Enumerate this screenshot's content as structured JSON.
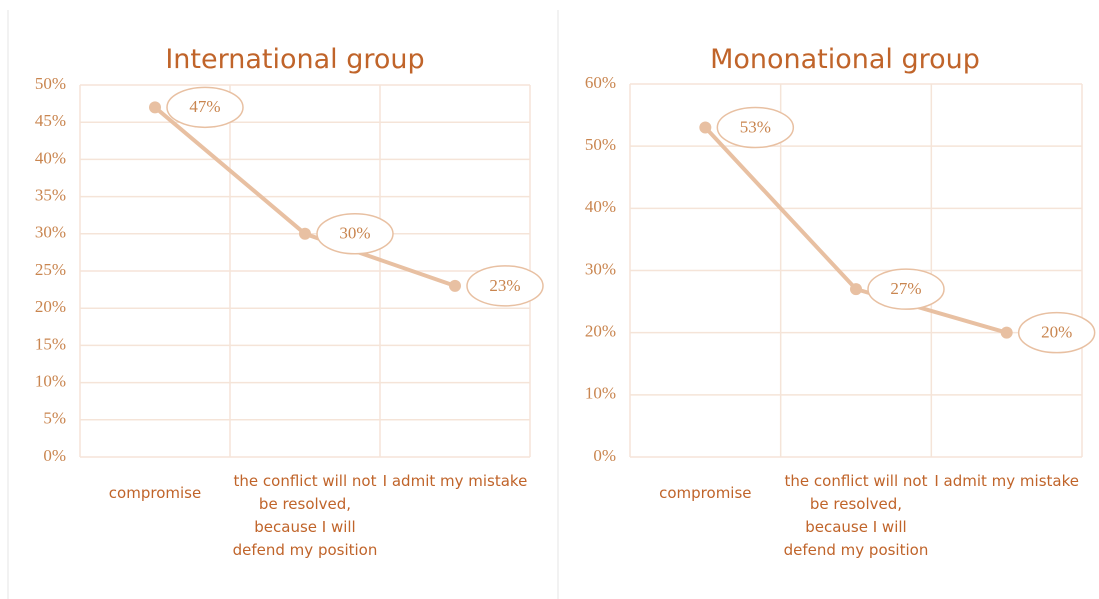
{
  "chart_data": [
    {
      "type": "line",
      "title": "International group",
      "categories": [
        "compromise",
        "the conflict will not be resolved, because I will defend my position",
        "I admit my mistake"
      ],
      "values": [
        47,
        30,
        23
      ],
      "value_labels": [
        "47%",
        "30%",
        "23%"
      ],
      "color": "#e8c0a2",
      "ylim": [
        0,
        50
      ],
      "yticks": [
        {
          "value": 0,
          "label": "0%"
        },
        {
          "value": 5,
          "label": "5%"
        },
        {
          "value": 10,
          "label": "10%"
        },
        {
          "value": 15,
          "label": "15%"
        },
        {
          "value": 20,
          "label": "20%"
        },
        {
          "value": 25,
          "label": "25%"
        },
        {
          "value": 30,
          "label": "30%"
        },
        {
          "value": 35,
          "label": "35%"
        },
        {
          "value": 40,
          "label": "40%"
        },
        {
          "value": 45,
          "label": "45%"
        },
        {
          "value": 50,
          "label": "50%"
        }
      ],
      "grid": true
    },
    {
      "type": "line",
      "title": "Mononational group",
      "categories": [
        "compromise",
        "the conflict will not be resolved, because I will defend my position",
        "I admit my mistake"
      ],
      "values": [
        53,
        27,
        20
      ],
      "value_labels": [
        "53%",
        "27%",
        "20%"
      ],
      "color": "#e8c0a2",
      "ylim": [
        0,
        60
      ],
      "yticks": [
        {
          "value": 0,
          "label": "0%"
        },
        {
          "value": 10,
          "label": "10%"
        },
        {
          "value": 20,
          "label": "20%"
        },
        {
          "value": 30,
          "label": "30%"
        },
        {
          "value": 40,
          "label": "40%"
        },
        {
          "value": 50,
          "label": "50%"
        },
        {
          "value": 60,
          "label": "60%"
        }
      ],
      "grid": true
    }
  ]
}
